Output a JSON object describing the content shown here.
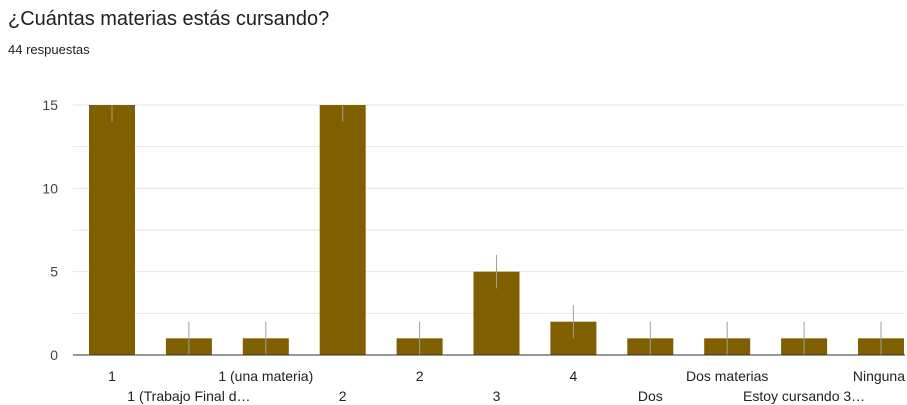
{
  "header": {
    "title": "¿Cuántas materias estás cursando?",
    "responses": "44 respuestas"
  },
  "colors": {
    "bar": "#7f5f00",
    "grid": "#e6e6e6",
    "baseline": "#333333",
    "whisker": "#9e9e9e"
  },
  "chart_data": {
    "type": "bar",
    "categories": [
      "1",
      "1 (Trabajo Final d…",
      "1 (una materia)",
      "2",
      "2",
      "3",
      "4",
      "Dos",
      "Dos materias",
      "Estoy cursando 3…",
      "Ninguna"
    ],
    "values": [
      15,
      1,
      1,
      15,
      1,
      5,
      2,
      1,
      1,
      1,
      1
    ],
    "yticks": [
      0,
      5,
      10,
      15
    ],
    "ylim": [
      0,
      15
    ],
    "grid": true
  }
}
